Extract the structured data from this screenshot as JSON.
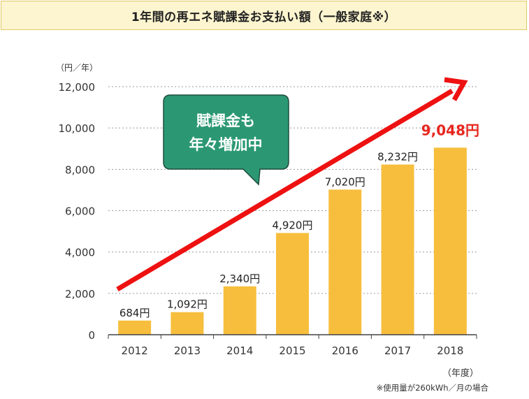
{
  "title": "1年間の再エネ賦課金お支払い額（一般家庭※）",
  "note": "※使用量が260kWh／月の場合",
  "callout": {
    "line1": "賦課金も",
    "line2": "年々増加中"
  },
  "colors": {
    "bar": "#f7be3d",
    "arrow": "#ee1111",
    "callout_fill": "#2b9873",
    "highlight_label": "#e8261e",
    "title_bg": "#fdf5cf"
  },
  "chart_data": {
    "type": "bar",
    "ylabel": "（円／年）",
    "xlabel": "（年度）",
    "categories": [
      "2012",
      "2013",
      "2014",
      "2015",
      "2016",
      "2017",
      "2018"
    ],
    "values": [
      684,
      1092,
      2340,
      4920,
      7020,
      8232,
      9048
    ],
    "data_labels": [
      "684円",
      "1,092円",
      "2,340円",
      "4,920円",
      "7,020円",
      "8,232円",
      "9,048円"
    ],
    "ylim": [
      0,
      12000
    ],
    "yticks": [
      0,
      2000,
      4000,
      6000,
      8000,
      10000,
      12000
    ],
    "ytick_labels": [
      "0",
      "2,000",
      "4,000",
      "6,000",
      "8,000",
      "10,000",
      "12,000"
    ],
    "grid": "horizontal dotted",
    "trend_arrow": "rising"
  }
}
